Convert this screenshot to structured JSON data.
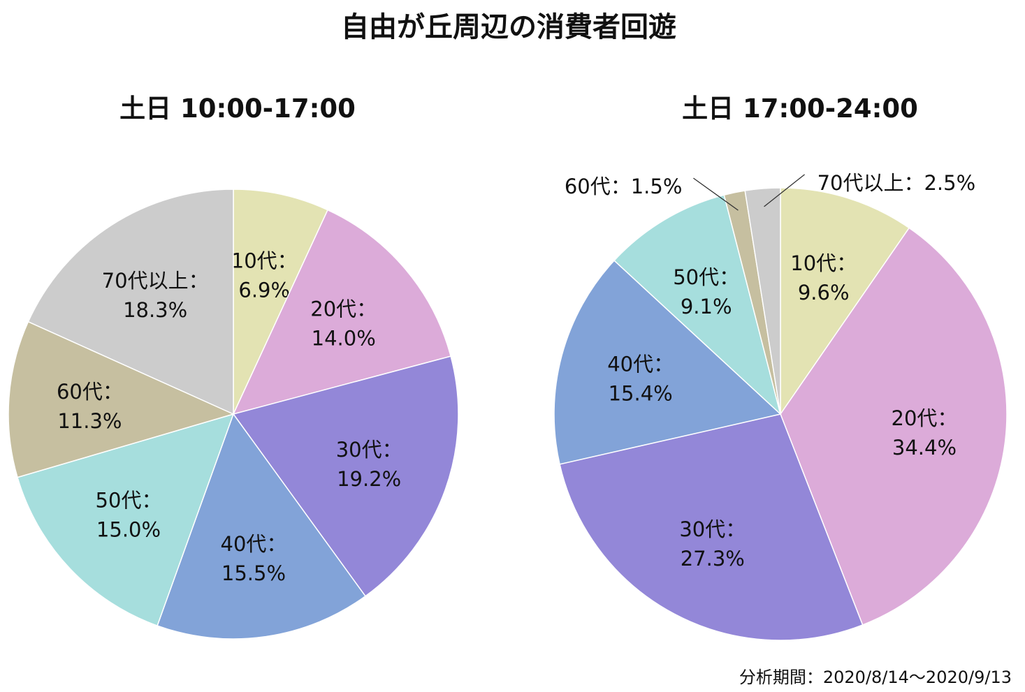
{
  "title": "自由が丘周辺の消費者回遊",
  "note": "分析期間：2020/8/14〜2020/9/13",
  "chart_data": [
    {
      "type": "pie",
      "title": "土日 10:00-17:00",
      "categories": [
        "10代：",
        "20代：",
        "30代：",
        "40代：",
        "50代：",
        "60代：",
        "70代以上："
      ],
      "values": [
        6.9,
        14.0,
        19.2,
        15.5,
        15.0,
        11.3,
        18.3
      ],
      "value_labels": [
        "6.9%",
        "14.0%",
        "19.2%",
        "15.5%",
        "15.0%",
        "11.3%",
        "18.3%"
      ],
      "colors": [
        "#e3e3b3",
        "#dcabd9",
        "#9387d8",
        "#82a3d8",
        "#a6dedd",
        "#c6bfa0",
        "#cccccc"
      ]
    },
    {
      "type": "pie",
      "title": "土日 17:00-24:00",
      "categories": [
        "10代：",
        "20代：",
        "30代：",
        "40代：",
        "50代：",
        "60代：",
        "70代以上："
      ],
      "values": [
        9.6,
        34.4,
        27.3,
        15.4,
        9.1,
        1.5,
        2.5
      ],
      "value_labels": [
        "9.6%",
        "34.4%",
        "27.3%",
        "15.4%",
        "9.1%",
        "1.5%",
        "2.5%"
      ],
      "colors": [
        "#e3e3b3",
        "#dcabd9",
        "#9387d8",
        "#82a3d8",
        "#a6dedd",
        "#c6bfa0",
        "#cccccc"
      ]
    }
  ]
}
